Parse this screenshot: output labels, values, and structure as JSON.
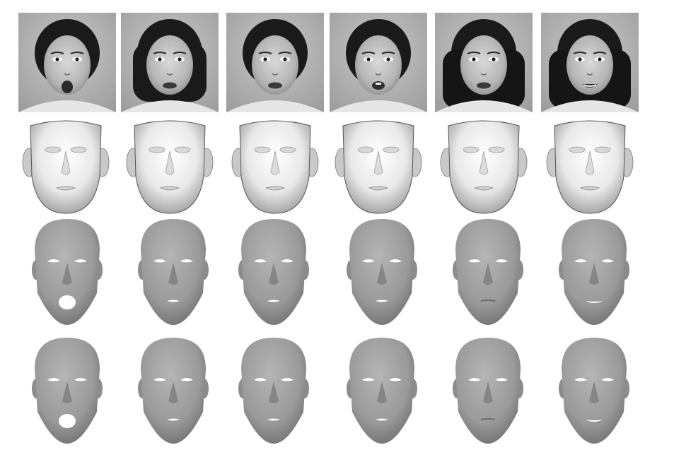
{
  "figure": {
    "columns": 6,
    "rows": [
      {
        "id": "photos",
        "kind": "grayscale-photo"
      },
      {
        "id": "smooth-shapes",
        "kind": "white-shaded-3d-face"
      },
      {
        "id": "reconstruction-a",
        "kind": "gray-3d-face-mesh"
      },
      {
        "id": "reconstruction-b",
        "kind": "gray-3d-face-mesh"
      }
    ],
    "expressions": [
      "surprise",
      "disgust",
      "sad",
      "fear",
      "angry",
      "happy"
    ]
  }
}
